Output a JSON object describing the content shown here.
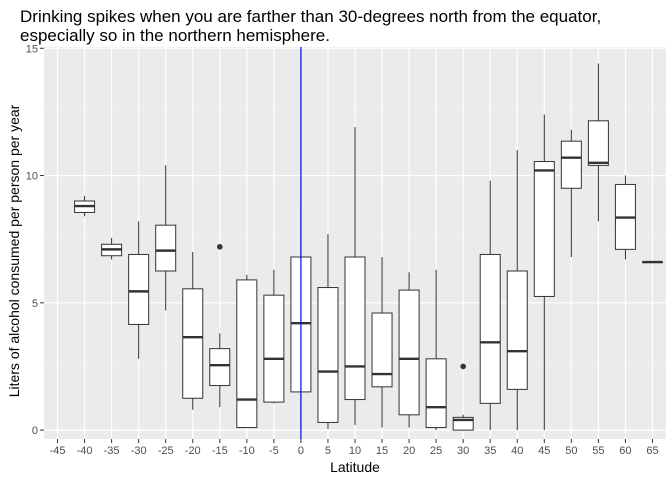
{
  "chart_data": {
    "type": "boxplot",
    "title_lines": [
      "Drinking spikes when you are farther than 30-degrees north from the equator,",
      "especially so in the northern hemisphere."
    ],
    "xlabel": "Latitude",
    "ylabel": "Liters of alcohol consumed per person per year",
    "x_categories": [
      "-45",
      "-40",
      "-35",
      "-30",
      "-25",
      "-20",
      "-15",
      "-10",
      "-5",
      "0",
      "5",
      "10",
      "15",
      "20",
      "25",
      "30",
      "35",
      "40",
      "45",
      "50",
      "55",
      "60",
      "65"
    ],
    "y_ticks": [
      0,
      5,
      10,
      15
    ],
    "ylim": [
      -0.35,
      15.05
    ],
    "reference_line": {
      "x": "0",
      "color": "#0000ff"
    },
    "colors": {
      "panel": "#ebebeb",
      "grid_major": "#ffffff",
      "grid_minor": "#f2f2f2",
      "box_fill": "#ffffff",
      "box_stroke": "#333333"
    },
    "grid": true,
    "boxes": [
      {
        "x": "-40",
        "min": 8.4,
        "q1": 8.55,
        "median": 8.8,
        "q3": 9.0,
        "max": 9.2,
        "outliers": []
      },
      {
        "x": "-35",
        "min": 6.7,
        "q1": 6.85,
        "median": 7.1,
        "q3": 7.3,
        "max": 7.55,
        "outliers": []
      },
      {
        "x": "-30",
        "min": 2.8,
        "q1": 4.15,
        "median": 5.45,
        "q3": 6.9,
        "max": 8.2,
        "outliers": []
      },
      {
        "x": "-25",
        "min": 4.7,
        "q1": 6.25,
        "median": 7.05,
        "q3": 8.05,
        "max": 10.4,
        "outliers": []
      },
      {
        "x": "-20",
        "min": 0.8,
        "q1": 1.25,
        "median": 3.65,
        "q3": 5.55,
        "max": 7.0,
        "outliers": []
      },
      {
        "x": "-15",
        "min": 0.9,
        "q1": 1.75,
        "median": 2.55,
        "q3": 3.2,
        "max": 3.8,
        "outliers": [
          7.2
        ]
      },
      {
        "x": "-10",
        "min": 0.1,
        "q1": 0.1,
        "median": 1.2,
        "q3": 5.9,
        "max": 6.1,
        "outliers": []
      },
      {
        "x": "-5",
        "min": 1.05,
        "q1": 1.1,
        "median": 2.8,
        "q3": 5.3,
        "max": 6.3,
        "outliers": []
      },
      {
        "x": "0",
        "min": 0.1,
        "q1": 1.5,
        "median": 4.2,
        "q3": 6.8,
        "max": 8.9,
        "outliers": []
      },
      {
        "x": "5",
        "min": 0.05,
        "q1": 0.3,
        "median": 2.3,
        "q3": 5.6,
        "max": 7.7,
        "outliers": []
      },
      {
        "x": "10",
        "min": 0.2,
        "q1": 1.2,
        "median": 2.5,
        "q3": 6.8,
        "max": 11.9,
        "outliers": []
      },
      {
        "x": "15",
        "min": 0.1,
        "q1": 1.7,
        "median": 2.2,
        "q3": 4.6,
        "max": 6.8,
        "outliers": []
      },
      {
        "x": "20",
        "min": 0.1,
        "q1": 0.6,
        "median": 2.8,
        "q3": 5.5,
        "max": 6.2,
        "outliers": []
      },
      {
        "x": "25",
        "min": 0.0,
        "q1": 0.1,
        "median": 0.9,
        "q3": 2.8,
        "max": 6.3,
        "outliers": []
      },
      {
        "x": "30",
        "min": 0.0,
        "q1": 0.0,
        "median": 0.4,
        "q3": 0.5,
        "max": 0.6,
        "outliers": [
          2.5
        ]
      },
      {
        "x": "35",
        "min": 0.0,
        "q1": 1.05,
        "median": 3.45,
        "q3": 6.9,
        "max": 9.8,
        "outliers": []
      },
      {
        "x": "40",
        "min": 0.0,
        "q1": 1.6,
        "median": 3.1,
        "q3": 6.25,
        "max": 11.0,
        "outliers": []
      },
      {
        "x": "45",
        "min": 0.0,
        "q1": 5.25,
        "median": 10.2,
        "q3": 10.55,
        "max": 12.4,
        "outliers": []
      },
      {
        "x": "50",
        "min": 6.8,
        "q1": 9.5,
        "median": 10.7,
        "q3": 11.35,
        "max": 11.8,
        "outliers": []
      },
      {
        "x": "55",
        "min": 8.2,
        "q1": 10.4,
        "median": 10.5,
        "q3": 12.15,
        "max": 14.4,
        "outliers": []
      },
      {
        "x": "60",
        "min": 6.7,
        "q1": 7.1,
        "median": 8.35,
        "q3": 9.65,
        "max": 10.0,
        "outliers": []
      },
      {
        "x": "65",
        "min": 6.6,
        "q1": 6.6,
        "median": 6.6,
        "q3": 6.6,
        "max": 6.6,
        "outliers": []
      }
    ]
  }
}
